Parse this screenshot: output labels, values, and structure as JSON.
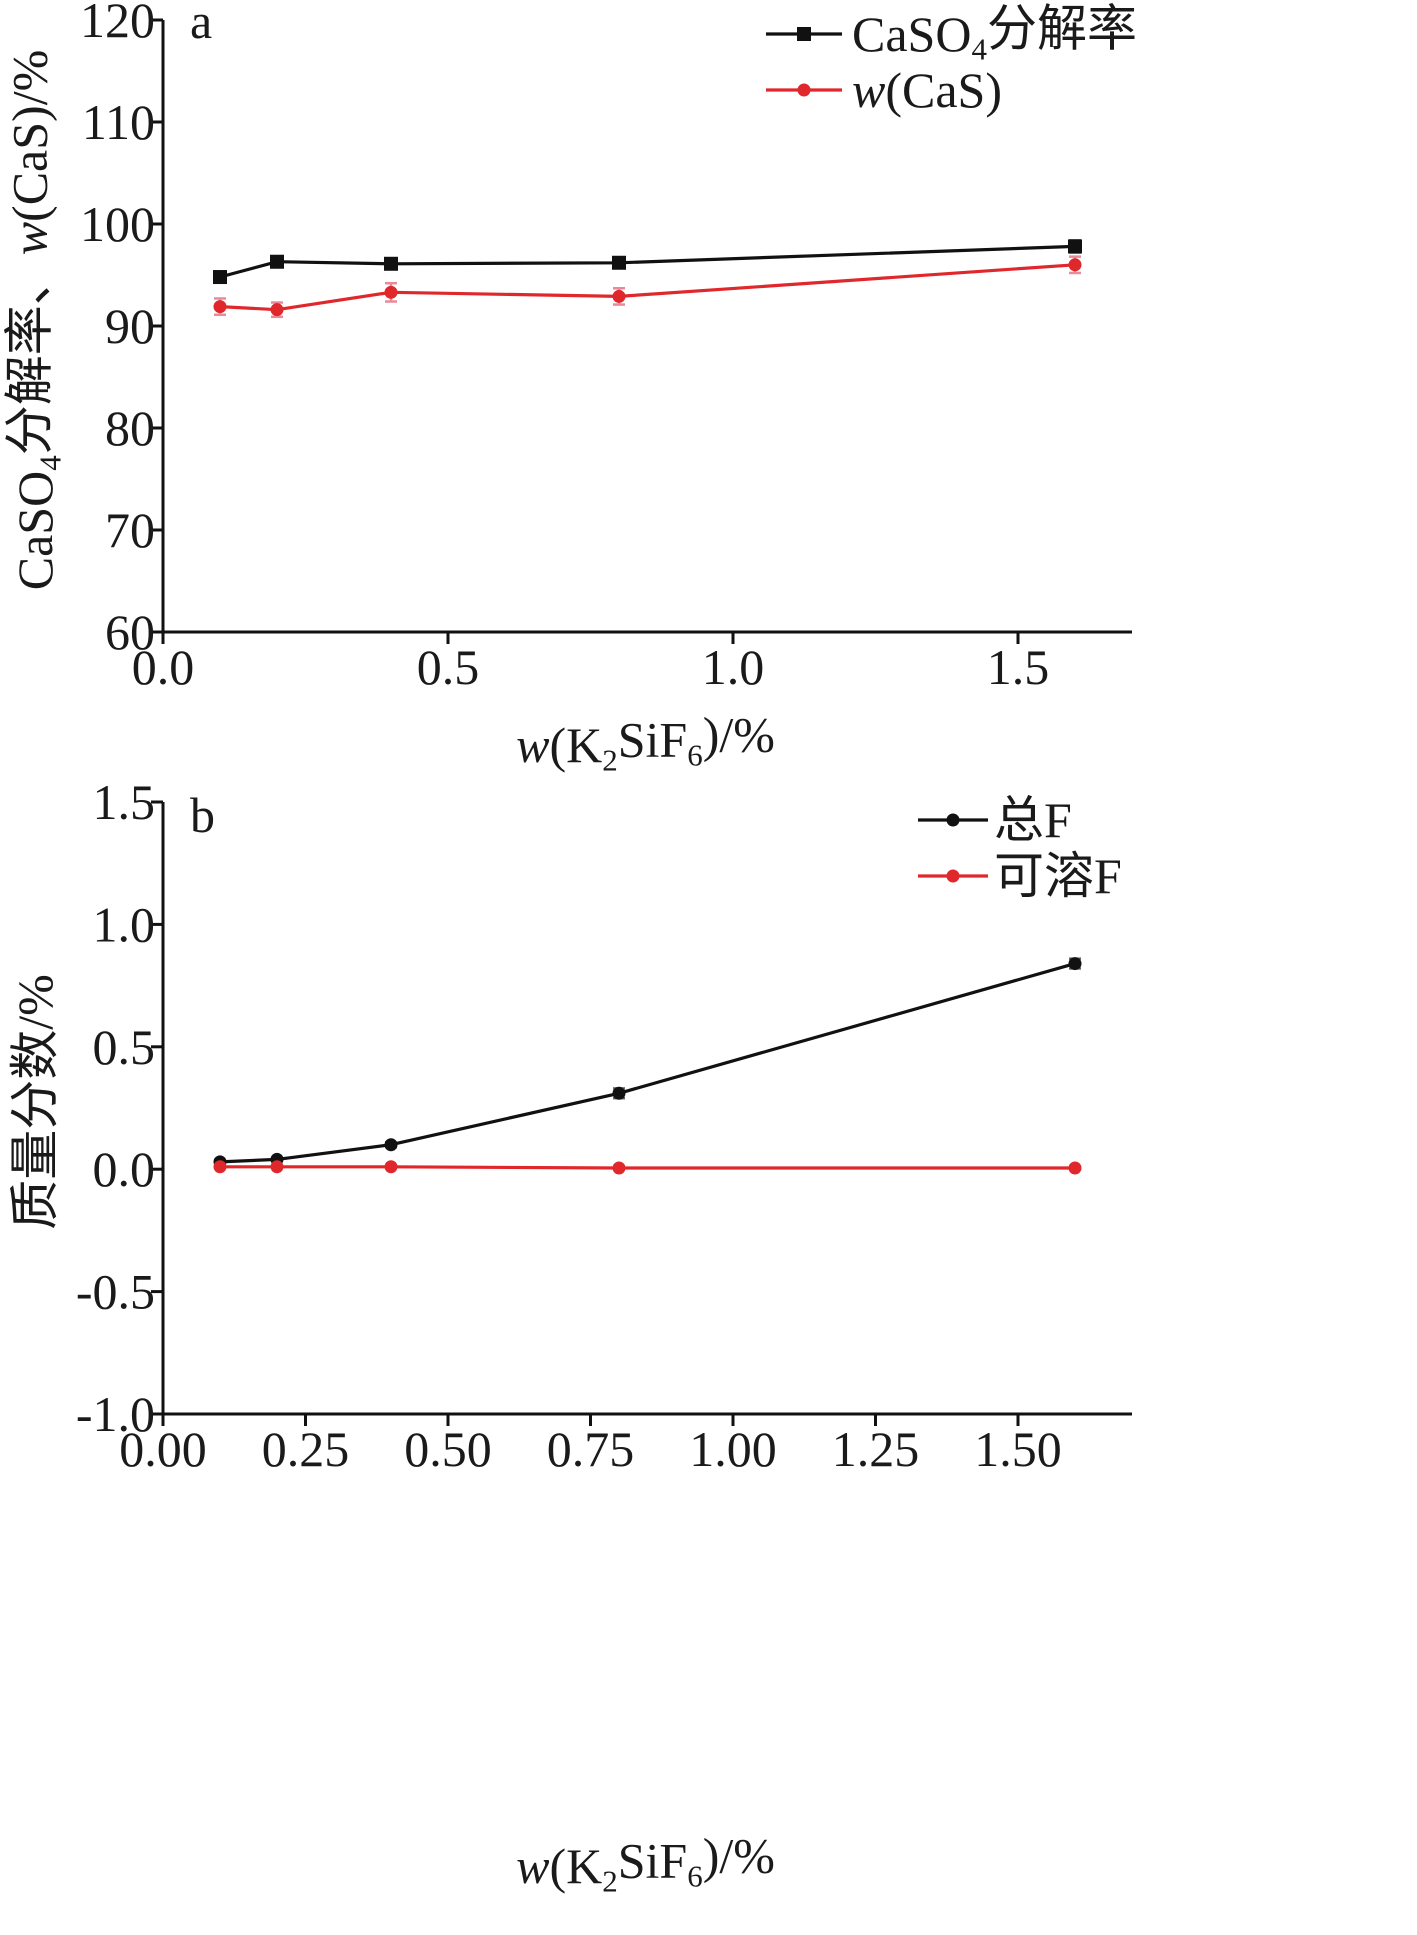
{
  "chart_data": [
    {
      "type": "line",
      "panel_label": "a",
      "xlabel": {
        "italic": "w",
        "main": "(K",
        "sub1": "2",
        "mid": "SiF",
        "sub2": "6",
        "end": ")/%"
      },
      "ylabel": {
        "p1": "CaSO",
        "sub": "4",
        "p2": "分解率、",
        "italic": "w",
        "p3": "(CaS)/%"
      },
      "xlim": [
        0.0,
        1.7
      ],
      "ylim": [
        60,
        120
      ],
      "xticks": [
        0.0,
        0.5,
        1.0,
        1.5
      ],
      "xtick_labels": [
        "0.0",
        "0.5",
        "1.0",
        "1.5"
      ],
      "yticks": [
        60,
        70,
        80,
        90,
        100,
        110,
        120
      ],
      "ytick_labels": [
        "60",
        "70",
        "80",
        "90",
        "100",
        "110",
        "120"
      ],
      "x": [
        0.1,
        0.2,
        0.4,
        0.8,
        1.6
      ],
      "series": [
        {
          "name": {
            "p1": "CaSO",
            "sub": "4",
            "p2": "分解率"
          },
          "color": "#111111",
          "marker": "square",
          "values": [
            94.8,
            96.3,
            96.1,
            96.2,
            97.8
          ],
          "errors": [
            0.4,
            0.3,
            0.3,
            0.4,
            0.6
          ]
        },
        {
          "name": {
            "italic": "w",
            "p2": "(CaS)"
          },
          "color": "#e0282c",
          "marker": "circle",
          "values": [
            91.9,
            91.6,
            93.3,
            92.9,
            96.0
          ],
          "errors": [
            0.8,
            0.7,
            0.9,
            0.8,
            0.8
          ]
        }
      ],
      "legend_position": "top-right"
    },
    {
      "type": "line",
      "panel_label": "b",
      "xlabel": {
        "italic": "w",
        "main": "(K",
        "sub1": "2",
        "mid": "SiF",
        "sub2": "6",
        "end": ")/%"
      },
      "ylabel": {
        "p1": "质量分数/%"
      },
      "xlim": [
        0.0,
        1.7
      ],
      "ylim": [
        -1.0,
        1.5
      ],
      "xticks": [
        0.0,
        0.25,
        0.5,
        0.75,
        1.0,
        1.25,
        1.5
      ],
      "xtick_labels": [
        "0.00",
        "0.25",
        "0.50",
        "0.75",
        "1.00",
        "1.25",
        "1.50"
      ],
      "yticks": [
        -1.0,
        -0.5,
        0.0,
        0.5,
        1.0,
        1.5
      ],
      "ytick_labels": [
        "-1.0",
        "-0.5",
        "0.0",
        "0.5",
        "1.0",
        "1.5"
      ],
      "x": [
        0.1,
        0.2,
        0.4,
        0.8,
        1.6
      ],
      "series": [
        {
          "name": {
            "p1": "总F"
          },
          "color": "#111111",
          "marker": "circle",
          "values": [
            0.03,
            0.04,
            0.1,
            0.31,
            0.84
          ],
          "errors": [
            0.005,
            0.005,
            0.01,
            0.02,
            0.02
          ]
        },
        {
          "name": {
            "p1": "可溶F"
          },
          "color": "#e0282c",
          "marker": "circle",
          "values": [
            0.01,
            0.01,
            0.01,
            0.005,
            0.005
          ],
          "errors": [
            0,
            0,
            0,
            0,
            0
          ]
        }
      ],
      "legend_position": "top-right"
    }
  ]
}
